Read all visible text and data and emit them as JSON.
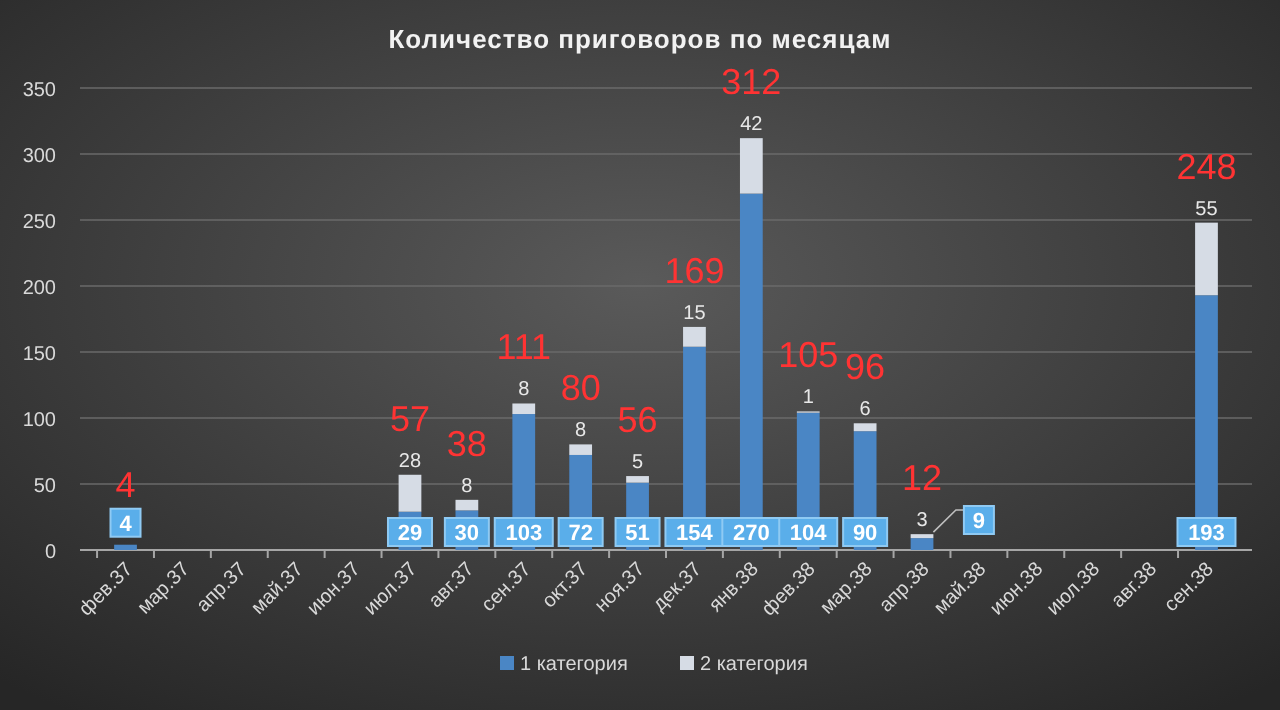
{
  "chart_data": {
    "type": "bar",
    "title": "Количество приговоров по месяцам",
    "categories": [
      "фев.37",
      "мар.37",
      "апр.37",
      "май.37",
      "июн.37",
      "июл.37",
      "авг.37",
      "сен.37",
      "окт.37",
      "ноя.37",
      "дек.37",
      "янв.38",
      "фев.38",
      "мар.38",
      "апр.38",
      "май.38",
      "июн.38",
      "июл.38",
      "авг.38",
      "сен.38"
    ],
    "series": [
      {
        "name": "1 категория",
        "color": "#4a86c5",
        "values": [
          4,
          null,
          null,
          null,
          null,
          29,
          30,
          103,
          72,
          51,
          154,
          270,
          104,
          90,
          9,
          null,
          null,
          null,
          null,
          193
        ]
      },
      {
        "name": "2 категория",
        "color": "#d6dce5",
        "values": [
          null,
          null,
          null,
          null,
          null,
          28,
          8,
          8,
          8,
          5,
          15,
          42,
          1,
          6,
          3,
          null,
          null,
          null,
          null,
          55
        ]
      }
    ],
    "totals": [
      "4",
      null,
      null,
      null,
      null,
      "57",
      "38",
      "111",
      "80",
      "56",
      "169",
      "312",
      "105",
      "96",
      "12",
      null,
      null,
      null,
      null,
      "248"
    ],
    "stacked": true,
    "data_labels": true,
    "ylim": [
      0,
      350
    ],
    "yticks": [
      0,
      50,
      100,
      150,
      200,
      250,
      300,
      350
    ],
    "grid": "y",
    "legend": "bottom"
  }
}
